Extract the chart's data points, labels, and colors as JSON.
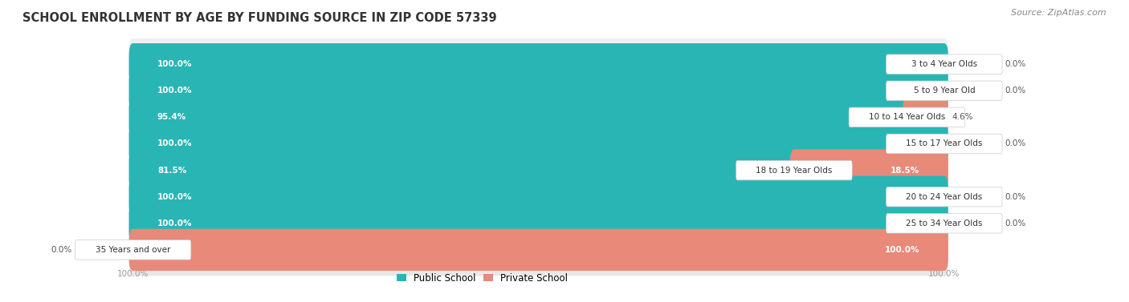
{
  "title": "SCHOOL ENROLLMENT BY AGE BY FUNDING SOURCE IN ZIP CODE 57339",
  "source": "Source: ZipAtlas.com",
  "categories": [
    "3 to 4 Year Olds",
    "5 to 9 Year Old",
    "10 to 14 Year Olds",
    "15 to 17 Year Olds",
    "18 to 19 Year Olds",
    "20 to 24 Year Olds",
    "25 to 34 Year Olds",
    "35 Years and over"
  ],
  "public_pct": [
    100.0,
    100.0,
    95.4,
    100.0,
    81.5,
    100.0,
    100.0,
    0.0
  ],
  "private_pct": [
    0.0,
    0.0,
    4.6,
    0.0,
    18.5,
    0.0,
    0.0,
    100.0
  ],
  "public_color": "#2ab5b5",
  "private_color": "#e8897a",
  "row_bg_even": "#efefef",
  "row_bg_odd": "#e8e8e8",
  "label_box_color": "#ffffff",
  "public_label_color": "#ffffff",
  "dark_label_color": "#555555",
  "title_color": "#333333",
  "source_color": "#888888",
  "axis_color": "#999999",
  "title_fontsize": 10.5,
  "source_fontsize": 8,
  "bar_label_fontsize": 7.5,
  "category_fontsize": 7.5,
  "legend_fontsize": 8.5,
  "axis_tick_fontsize": 7.5
}
